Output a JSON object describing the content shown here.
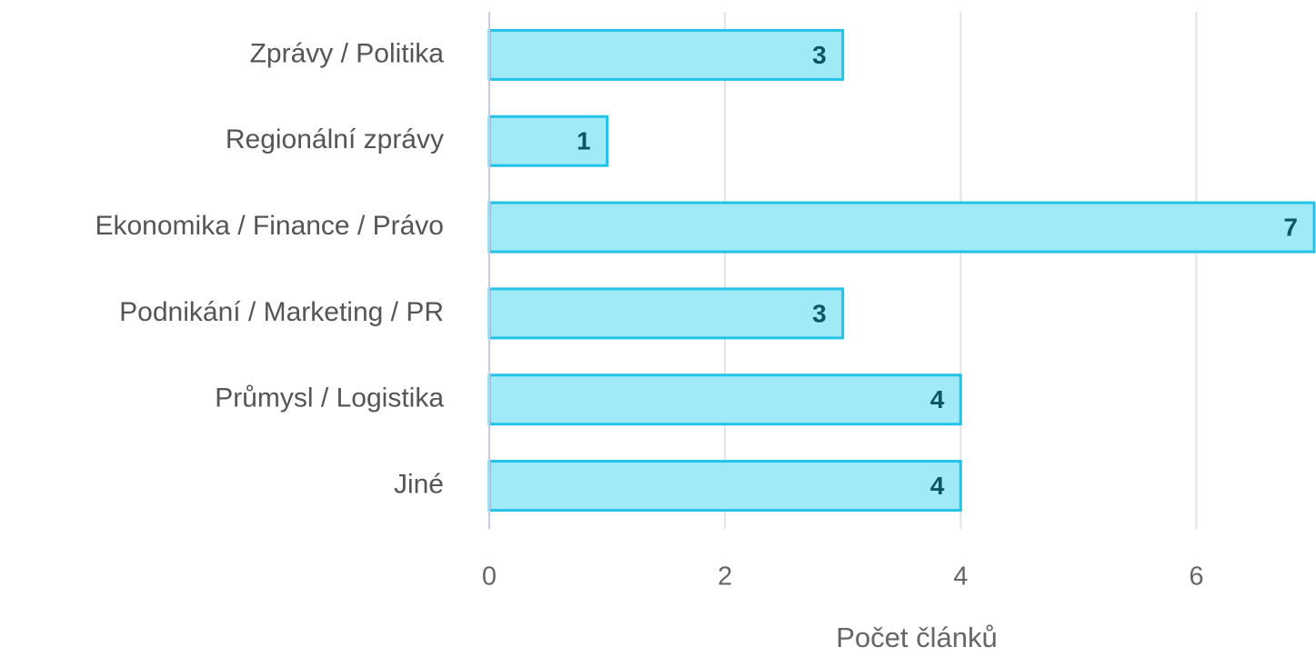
{
  "chart_data": {
    "type": "hbar",
    "categories": [
      "Zprávy / Politika",
      "Regionální zprávy",
      "Ekonomika / Finance / Právo",
      "Podnikání / Marketing / PR",
      "Průmysl / Logistika",
      "Jiné"
    ],
    "values": [
      3,
      1,
      7,
      3,
      4,
      4
    ],
    "color": "#a0e9f7",
    "edge_color": "#22c3e6",
    "label_color": "#0b5566",
    "x_label": "Počet článků",
    "xlim": [
      0,
      7
    ],
    "xticks": [
      0,
      2,
      4,
      6
    ],
    "grid": true
  }
}
